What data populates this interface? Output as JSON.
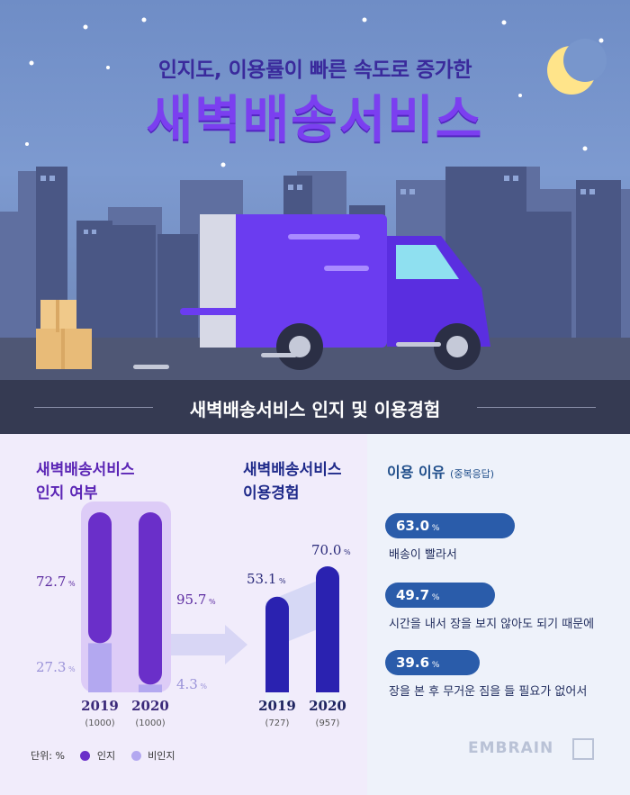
{
  "hero": {
    "subtitle": "인지도, 이용률이 빠른 속도로 증가한",
    "title": "새벽배송서비스"
  },
  "section": {
    "title": "새벽배송서비스 인지 및 이용경험"
  },
  "colors": {
    "aware": "#6a2fc9",
    "unaware": "#b3a8f0",
    "usage": "#2a22b0",
    "reason_pill": "#2a5caa",
    "band": "#353a52"
  },
  "panels": {
    "awareness": {
      "title_line1": "새벽배송서비스",
      "title_line2": "인지 여부"
    },
    "usage": {
      "title_line1": "새벽배송서비스",
      "title_line2": "이용경험"
    },
    "reasons": {
      "title": "이용 이유",
      "title_note": "(중복응답)"
    }
  },
  "legend": {
    "unit": "단위: %",
    "aware": "인지",
    "unaware": "비인지"
  },
  "chart_data": [
    {
      "type": "bar",
      "title": "새벽배송서비스 인지 여부",
      "categories": [
        "2019",
        "2020"
      ],
      "category_notes": [
        "(1000)",
        "(1000)"
      ],
      "stacked": true,
      "unit": "%",
      "series": [
        {
          "name": "인지",
          "values": [
            72.7,
            95.7
          ]
        },
        {
          "name": "비인지",
          "values": [
            27.3,
            4.3
          ]
        }
      ],
      "ylim": [
        0,
        100
      ]
    },
    {
      "type": "bar",
      "title": "새벽배송서비스 이용경험",
      "categories": [
        "2019",
        "2020"
      ],
      "category_notes": [
        "(727)",
        "(957)"
      ],
      "unit": "%",
      "values": [
        53.1,
        70.0
      ],
      "ylim": [
        0,
        100
      ]
    },
    {
      "type": "bar",
      "title": "이용 이유 (중복응답)",
      "unit": "%",
      "categories": [
        "배송이 빨라서",
        "시간을 내서 장을 보지 않아도 되기 때문에",
        "장을 본 후 무거운 짐을 들 필요가 없어서"
      ],
      "values": [
        63.0,
        49.7,
        39.6
      ]
    }
  ],
  "brand": {
    "logo": "EMBRAIN"
  }
}
